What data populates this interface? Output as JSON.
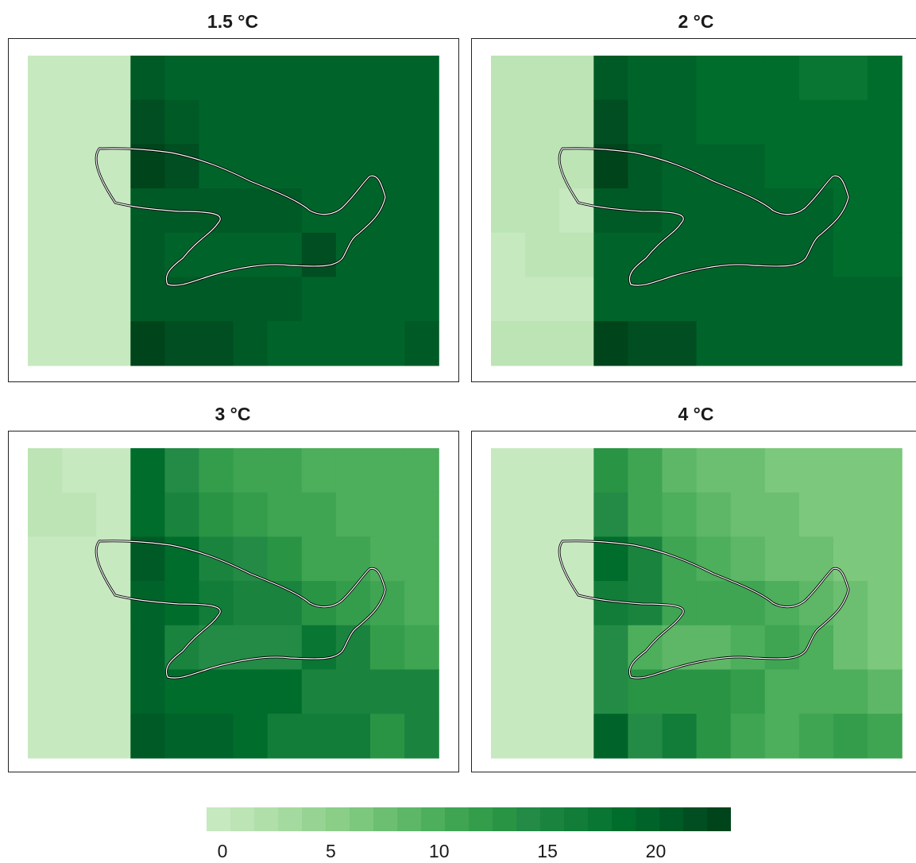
{
  "colors": {
    "outline": "#000000",
    "outline_halo": "#ffffff",
    "frame": "#222222"
  },
  "chart_data": {
    "type": "heatmap",
    "colorbar": {
      "ticks": [
        "0",
        "5",
        "10",
        "15",
        "20"
      ],
      "tick_values": [
        0,
        5,
        10,
        15,
        20
      ],
      "range": [
        0,
        22
      ],
      "colors": [
        "#c7e9c0",
        "#bce4b5",
        "#b0dfaa",
        "#a4da9f",
        "#97d494",
        "#8ace88",
        "#7cc87c",
        "#6cbf71",
        "#5db766",
        "#4dae5c",
        "#3fa553",
        "#349d4c",
        "#2a9445",
        "#238b45",
        "#1a843f",
        "#117d39",
        "#097634",
        "#006d2c",
        "#00642a",
        "#005a26",
        "#004e21",
        "#00441b"
      ]
    },
    "grid": {
      "rows": 7,
      "cols": 12
    },
    "panels": [
      {
        "title": "1.5 °C",
        "values": [
          [
            0,
            0,
            0,
            19,
            18,
            18,
            18,
            18,
            18,
            18,
            18,
            18
          ],
          [
            0,
            0,
            0,
            20,
            19,
            18,
            18,
            18,
            18,
            18,
            18,
            18
          ],
          [
            0,
            0,
            0,
            21,
            20,
            18,
            18,
            18,
            18,
            18,
            18,
            18
          ],
          [
            0,
            0,
            0,
            19,
            19,
            19,
            19,
            19,
            18,
            18,
            18,
            18
          ],
          [
            0,
            0,
            0,
            19,
            18,
            18,
            18,
            18,
            20,
            18,
            18,
            18
          ],
          [
            0,
            0,
            0,
            19,
            19,
            19,
            19,
            19,
            18,
            18,
            18,
            18
          ],
          [
            0,
            0,
            0,
            21,
            20,
            20,
            19,
            18,
            18,
            18,
            18,
            19
          ]
        ]
      },
      {
        "title": "2 °C",
        "values": [
          [
            1,
            1,
            1,
            19,
            18,
            18,
            17,
            17,
            17,
            16,
            16,
            17
          ],
          [
            1,
            1,
            1,
            20,
            18,
            18,
            17,
            17,
            17,
            17,
            17,
            17
          ],
          [
            1,
            1,
            1,
            22,
            19,
            18,
            18,
            18,
            17,
            17,
            17,
            17
          ],
          [
            1,
            1,
            0,
            19,
            19,
            18,
            18,
            18,
            18,
            18,
            17,
            17
          ],
          [
            0,
            1,
            1,
            18,
            18,
            18,
            18,
            18,
            18,
            18,
            17,
            17
          ],
          [
            0,
            0,
            0,
            18,
            18,
            18,
            18,
            18,
            18,
            18,
            18,
            18
          ],
          [
            1,
            1,
            1,
            21,
            20,
            20,
            18,
            18,
            18,
            18,
            18,
            18
          ]
        ]
      },
      {
        "title": "3 °C",
        "values": [
          [
            1,
            0,
            0,
            17,
            13,
            11,
            10,
            10,
            9,
            9,
            9,
            9
          ],
          [
            1,
            1,
            0,
            17,
            14,
            12,
            11,
            10,
            10,
            9,
            9,
            9
          ],
          [
            0,
            0,
            0,
            19,
            17,
            14,
            13,
            12,
            10,
            10,
            9,
            9
          ],
          [
            0,
            0,
            0,
            18,
            17,
            15,
            14,
            14,
            12,
            11,
            10,
            9
          ],
          [
            0,
            0,
            0,
            18,
            14,
            13,
            13,
            13,
            16,
            14,
            11,
            10
          ],
          [
            0,
            0,
            0,
            18,
            17,
            17,
            17,
            17,
            14,
            14,
            14,
            14
          ],
          [
            0,
            0,
            0,
            19,
            18,
            18,
            17,
            15,
            15,
            15,
            12,
            14
          ]
        ]
      },
      {
        "title": "4 °C",
        "values": [
          [
            0,
            0,
            0,
            12,
            10,
            8,
            7,
            7,
            6,
            6,
            6,
            6
          ],
          [
            0,
            0,
            0,
            13,
            10,
            9,
            8,
            7,
            7,
            6,
            6,
            6
          ],
          [
            0,
            0,
            0,
            17,
            14,
            10,
            9,
            8,
            7,
            7,
            6,
            6
          ],
          [
            0,
            0,
            0,
            15,
            14,
            10,
            10,
            10,
            9,
            8,
            7,
            6
          ],
          [
            0,
            0,
            0,
            13,
            9,
            8,
            8,
            9,
            10,
            9,
            7,
            6
          ],
          [
            0,
            0,
            0,
            13,
            12,
            12,
            12,
            11,
            9,
            9,
            9,
            8
          ],
          [
            0,
            0,
            0,
            18,
            13,
            15,
            12,
            10,
            9,
            10,
            11,
            10
          ]
        ]
      }
    ]
  }
}
